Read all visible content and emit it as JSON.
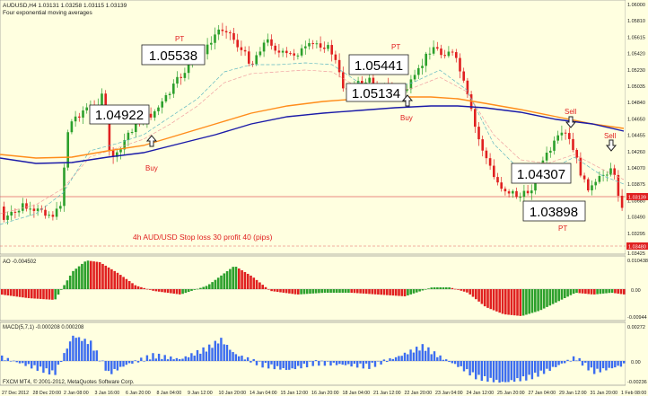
{
  "window": {
    "title": "AUDUSD,H4  1.03131 1.03258 1.03115 1.03139",
    "subtitle": "Four exponential moving averages",
    "copyright": "FXCM MT4, © 2001-2012, MetaQuotes Software Corp."
  },
  "price_axis": {
    "labels": [
      "1.06000",
      "1.05810",
      "1.05615",
      "1.05420",
      "1.05230",
      "1.05035",
      "1.04840",
      "1.04650",
      "1.04455",
      "1.04260",
      "1.04070",
      "1.03875",
      "1.03680",
      "1.03490",
      "1.03295"
    ],
    "current_price": "1.03139",
    "alt_price": "1.03480",
    "bottom_price": "1.03425"
  },
  "annotations": {
    "boxes": [
      "1.04922",
      "1.05538",
      "1.05441",
      "1.05134",
      "1.04307",
      "1.03898"
    ],
    "labels": [
      "PT",
      "PT",
      "Buy",
      "Buy",
      "Sell",
      "Sell",
      "PT"
    ],
    "strategy_note": "4h AUD/USD  Stop loss 30 profit 40 (pips)"
  },
  "ao": {
    "label": "AO -0.004502",
    "top": "0.010438",
    "zero": "0.00",
    "bottom": "-0.00944"
  },
  "macd": {
    "label": "MACD(5,7,1) -0.000208 0.000208",
    "top": "0.00272",
    "zero": "0.00",
    "bottom": "-0.00236"
  },
  "time_axis": [
    "27 Dec 2012",
    "28 Dec 20:00",
    "2 Jan 08:00",
    "3 Jan 16:00",
    "6 Jan 20:00",
    "8 Jan 04:00",
    "9 Jan 12:00",
    "10 Jan 20:00",
    "14 Jan 04:00",
    "15 Jan 12:00",
    "16 Jan 20:00",
    "18 Jan 04:00",
    "21 Jan 12:00",
    "22 Jan 20:00",
    "23 Jan 04:00",
    "24 Jan 12:00",
    "25 Jan 20:00",
    "27 Jan 04:00",
    "29 Jan 12:00",
    "31 Jan 20:00",
    "1 Feb 08:00"
  ],
  "colors": {
    "background": "#ffffe0",
    "bull": "#2ca02c",
    "bear": "#e02020",
    "ema_fast": "#1a1aa8",
    "ema_slow": "#ff8c1a",
    "macd_bar": "#3b6cf0",
    "axis_text": "#202020"
  }
}
